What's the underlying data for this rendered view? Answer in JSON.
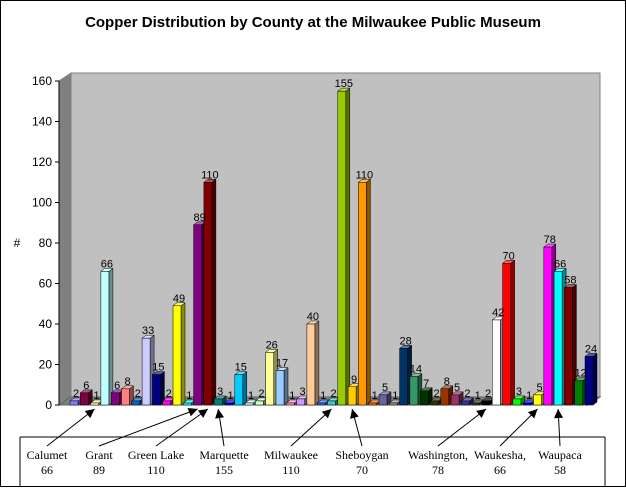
{
  "chart_data": {
    "type": "bar",
    "title": "Copper Distribution by County at the Milwaukee Public Museum",
    "ylabel": "#",
    "xlabel": "",
    "ylim": [
      0,
      160
    ],
    "yticks": [
      0,
      20,
      40,
      60,
      80,
      100,
      120,
      140,
      160
    ],
    "grid": false,
    "legend": "none",
    "bars": [
      {
        "value": 2,
        "color": "#8080ff",
        "label": "2"
      },
      {
        "value": 6,
        "color": "#800040",
        "label": "6"
      },
      {
        "value": 1,
        "color": "#ffffc0",
        "label": "1"
      },
      {
        "value": 66,
        "color": "#c0ffff",
        "label": "66"
      },
      {
        "value": 6,
        "color": "#800080",
        "label": "6"
      },
      {
        "value": 8,
        "color": "#ff8080",
        "label": "8"
      },
      {
        "value": 2,
        "color": "#0066cc",
        "label": "2"
      },
      {
        "value": 33,
        "color": "#ccccff",
        "label": "33"
      },
      {
        "value": 15,
        "color": "#000080",
        "label": "15"
      },
      {
        "value": 2,
        "color": "#ff00ff",
        "label": "2"
      },
      {
        "value": 49,
        "color": "#ffff00",
        "label": "49"
      },
      {
        "value": 1,
        "color": "#00ffff",
        "label": "1"
      },
      {
        "value": 89,
        "color": "#800080",
        "label": "89"
      },
      {
        "value": 110,
        "color": "#800000",
        "label": "110"
      },
      {
        "value": 3,
        "color": "#008080",
        "label": "3"
      },
      {
        "value": 1,
        "color": "#0000ff",
        "label": "1"
      },
      {
        "value": 15,
        "color": "#00ccff",
        "label": "15"
      },
      {
        "value": 1,
        "color": "#ccffff",
        "label": "1"
      },
      {
        "value": 2,
        "color": "#ccffcc",
        "label": "2"
      },
      {
        "value": 26,
        "color": "#ffff99",
        "label": "26"
      },
      {
        "value": 17,
        "color": "#99ccff",
        "label": "17"
      },
      {
        "value": 1,
        "color": "#ff99cc",
        "label": "1"
      },
      {
        "value": 3,
        "color": "#cc99ff",
        "label": "3"
      },
      {
        "value": 40,
        "color": "#ffcc99",
        "label": "40"
      },
      {
        "value": 1,
        "color": "#3366ff",
        "label": "1"
      },
      {
        "value": 2,
        "color": "#33cccc",
        "label": "2"
      },
      {
        "value": 155,
        "color": "#99cc00",
        "label": "155"
      },
      {
        "value": 9,
        "color": "#ffcc00",
        "label": "9"
      },
      {
        "value": 110,
        "color": "#ff9900",
        "label": "110"
      },
      {
        "value": 1,
        "color": "#ff6600",
        "label": "1"
      },
      {
        "value": 5,
        "color": "#666699",
        "label": "5"
      },
      {
        "value": 1,
        "color": "#969696",
        "label": "1"
      },
      {
        "value": 28,
        "color": "#003366",
        "label": "28"
      },
      {
        "value": 14,
        "color": "#339966",
        "label": "14"
      },
      {
        "value": 7,
        "color": "#003300",
        "label": "7"
      },
      {
        "value": 2,
        "color": "#333300",
        "label": "2"
      },
      {
        "value": 8,
        "color": "#993300",
        "label": "8"
      },
      {
        "value": 5,
        "color": "#993366",
        "label": "5"
      },
      {
        "value": 2,
        "color": "#333399",
        "label": "2"
      },
      {
        "value": 1,
        "color": "#333333",
        "label": "1"
      },
      {
        "value": 2,
        "color": "#000000",
        "label": "2"
      },
      {
        "value": 42,
        "color": "#ffffff",
        "label": "42"
      },
      {
        "value": 70,
        "color": "#ff0000",
        "label": "70"
      },
      {
        "value": 3,
        "color": "#00ff00",
        "label": "3"
      },
      {
        "value": 1,
        "color": "#0000ff",
        "label": "1"
      },
      {
        "value": 5,
        "color": "#ffff00",
        "label": "5"
      },
      {
        "value": 78,
        "color": "#ff00ff",
        "label": "78"
      },
      {
        "value": 66,
        "color": "#00ffff",
        "label": "66"
      },
      {
        "value": 58,
        "color": "#800000",
        "label": "58"
      },
      {
        "value": 12,
        "color": "#008000",
        "label": "12"
      },
      {
        "value": 24,
        "color": "#000080",
        "label": "24"
      }
    ],
    "county_labels": [
      {
        "county": "Calumet",
        "total": "66",
        "target_bar": 2
      },
      {
        "county": "Grant",
        "total": "89",
        "target_bar": 12
      },
      {
        "county": "Green Lake",
        "total": "110",
        "target_bar": 13
      },
      {
        "county": "Marquette",
        "total": "155",
        "target_bar": 14
      },
      {
        "county": "Milwaukee",
        "total": "110",
        "target_bar": 25
      },
      {
        "county": "Sheboygan",
        "total": "70",
        "target_bar": 27
      },
      {
        "county": "Washington,",
        "total": "78",
        "target_bar": 40
      },
      {
        "county": "Waukesha,",
        "total": "66",
        "target_bar": 45
      },
      {
        "county": "Waupaca",
        "total": "58",
        "target_bar": 47
      }
    ]
  }
}
